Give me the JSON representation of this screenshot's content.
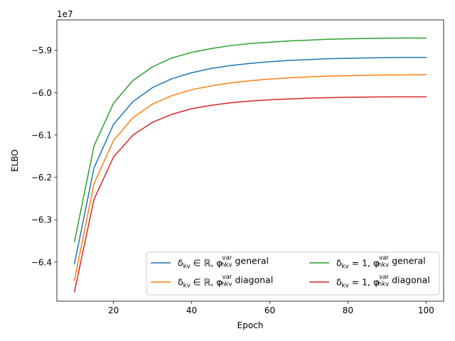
{
  "chart_data": {
    "type": "line",
    "title": "",
    "xlabel": "Epoch",
    "ylabel": "ELBO",
    "offset_text": "1e7",
    "xlim": [
      5.5,
      104.5
    ],
    "ylim": [
      -6.4925,
      -5.8283
    ],
    "xticks": [
      20,
      40,
      60,
      80,
      100
    ],
    "yticks": [
      -6.4,
      -6.3,
      -6.2,
      -6.1,
      -6.0,
      -5.9
    ],
    "ytick_labels": [
      "−6.4",
      "−6.3",
      "−6.2",
      "−6.1",
      "−6.0",
      "−5.9"
    ],
    "grid": false,
    "legend_position": "lower-right",
    "x": [
      10,
      15,
      20,
      25,
      30,
      35,
      40,
      45,
      50,
      55,
      60,
      65,
      70,
      75,
      80,
      85,
      90,
      95,
      100
    ],
    "series": [
      {
        "name": "δkv ∈ ℝ, φhkv^var general",
        "legend": {
          "delta": "δ",
          "delta_sub": "kv",
          "cond": "∈ ℝ,",
          "phi": "φ",
          "phi_sup": "var",
          "phi_sub": "hkv",
          "kind": "general"
        },
        "color": "#1f77b4",
        "values": [
          -6.404,
          -6.178,
          -6.075,
          -6.021,
          -5.988,
          -5.967,
          -5.953,
          -5.943,
          -5.936,
          -5.931,
          -5.927,
          -5.924,
          -5.922,
          -5.92,
          -5.919,
          -5.918,
          -5.9175,
          -5.917,
          -5.917
        ]
      },
      {
        "name": "δkv ∈ ℝ, φhkv^var diagonal",
        "legend": {
          "delta": "δ",
          "delta_sub": "kv",
          "cond": "∈ ℝ,",
          "phi": "φ",
          "phi_sup": "var",
          "phi_sub": "hkv",
          "kind": "diagonal"
        },
        "color": "#ff7f0e",
        "values": [
          -6.443,
          -6.215,
          -6.113,
          -6.059,
          -6.027,
          -6.007,
          -5.993,
          -5.984,
          -5.977,
          -5.972,
          -5.968,
          -5.965,
          -5.963,
          -5.961,
          -5.96,
          -5.959,
          -5.9585,
          -5.958,
          -5.9575
        ]
      },
      {
        "name": "δkv = 1, φhkv^var general",
        "legend": {
          "delta": "δ",
          "delta_sub": "kv",
          "cond": "= 1,",
          "phi": "φ",
          "phi_sup": "var",
          "phi_sub": "hkv",
          "kind": "general"
        },
        "color": "#2ca02c",
        "values": [
          -6.352,
          -6.126,
          -6.025,
          -5.971,
          -5.939,
          -5.918,
          -5.905,
          -5.896,
          -5.889,
          -5.884,
          -5.881,
          -5.878,
          -5.876,
          -5.874,
          -5.873,
          -5.872,
          -5.8715,
          -5.871,
          -5.871
        ]
      },
      {
        "name": "δkv = 1, φhkv^var diagonal",
        "legend": {
          "delta": "δ",
          "delta_sub": "kv",
          "cond": "= 1,",
          "phi": "φ",
          "phi_sup": "var",
          "phi_sub": "hkv",
          "kind": "diagonal"
        },
        "color": "#d62728",
        "values": [
          -6.47,
          -6.252,
          -6.152,
          -6.1,
          -6.07,
          -6.051,
          -6.038,
          -6.03,
          -6.024,
          -6.02,
          -6.017,
          -6.015,
          -6.013,
          -6.012,
          -6.011,
          -6.0105,
          -6.01,
          -6.01,
          -6.01
        ]
      }
    ]
  }
}
